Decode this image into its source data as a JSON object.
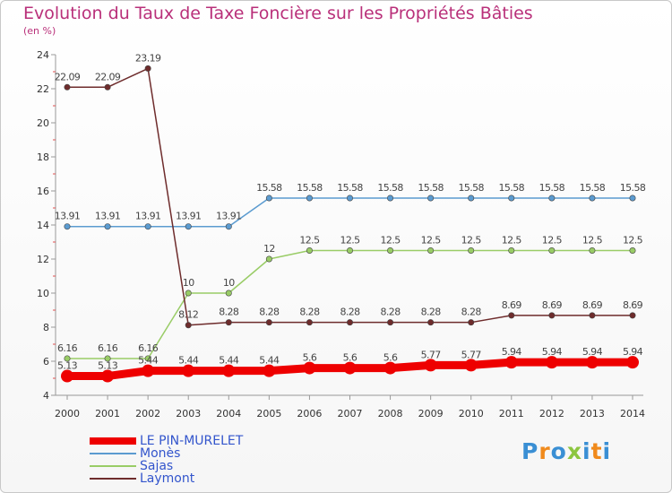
{
  "title": "Evolution du Taux de Taxe Foncière sur les Propriétés Bâties",
  "unit": "(en %)",
  "logo": "Proxiti",
  "chart_data": {
    "type": "line",
    "title": "Evolution du Taux de Taxe Foncière sur les Propriétés Bâties",
    "ylabel": "(en %)",
    "xlabel": "",
    "ylim": [
      4,
      24
    ],
    "yticks": [
      4,
      6,
      8,
      10,
      12,
      14,
      16,
      18,
      20,
      22,
      24
    ],
    "categories": [
      "2000",
      "2001",
      "2002",
      "2003",
      "2004",
      "2005",
      "2006",
      "2007",
      "2008",
      "2009",
      "2010",
      "2011",
      "2012",
      "2013",
      "2014"
    ],
    "series": [
      {
        "name": "LE PIN-MURELET",
        "color": "#ee0000",
        "values": [
          5.13,
          5.13,
          5.44,
          5.44,
          5.44,
          5.44,
          5.6,
          5.6,
          5.6,
          5.77,
          5.77,
          5.94,
          5.94,
          5.94,
          5.94
        ],
        "labels": [
          "5.13",
          "5.13",
          "5.44",
          "5.44",
          "5.44",
          "5.44",
          "5.6",
          "5.6",
          "5.6",
          "5.77",
          "5.77",
          "5.94",
          "5.94",
          "5.94",
          "5.94"
        ]
      },
      {
        "name": "Monès",
        "color": "#5b9bd0",
        "values": [
          13.91,
          13.91,
          13.91,
          13.91,
          13.91,
          15.58,
          15.58,
          15.58,
          15.58,
          15.58,
          15.58,
          15.58,
          15.58,
          15.58,
          15.58
        ],
        "labels": [
          "13.91",
          "13.91",
          "13.91",
          "13.91",
          "13.91",
          "15.58",
          "15.58",
          "15.58",
          "15.58",
          "15.58",
          "15.58",
          "15.58",
          "15.58",
          "15.58",
          "15.58"
        ]
      },
      {
        "name": "Sajas",
        "color": "#99cc66",
        "values": [
          6.16,
          6.16,
          6.16,
          10,
          10,
          12,
          12.5,
          12.5,
          12.5,
          12.5,
          12.5,
          12.5,
          12.5,
          12.5,
          12.5
        ],
        "labels": [
          "6.16",
          "6.16",
          "6.16",
          "10",
          "10",
          "12",
          "12.5",
          "12.5",
          "12.5",
          "12.5",
          "12.5",
          "12.5",
          "12.5",
          "12.5",
          "12.5"
        ]
      },
      {
        "name": "Laymont",
        "color": "#6e2c2c",
        "values": [
          22.09,
          22.09,
          23.19,
          8.12,
          8.28,
          8.28,
          8.28,
          8.28,
          8.28,
          8.28,
          8.28,
          8.69,
          8.69,
          8.69,
          8.69
        ],
        "labels": [
          "22.09",
          "22.09",
          "23.19",
          "8.12",
          "8.28",
          "8.28",
          "8.28",
          "8.28",
          "8.28",
          "8.28",
          "8.28",
          "8.69",
          "8.69",
          "8.69",
          "8.69"
        ]
      }
    ],
    "legend": "bottom-left",
    "grid": false
  }
}
